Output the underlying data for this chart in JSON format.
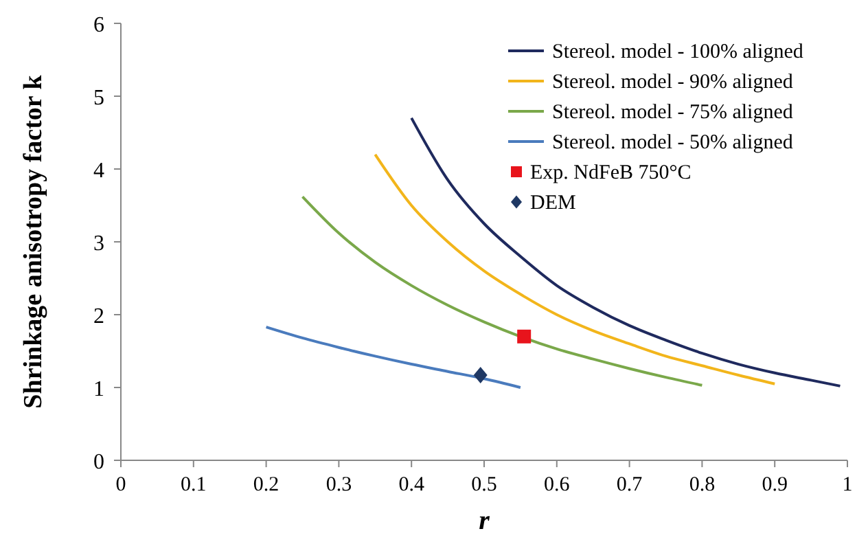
{
  "chart_data": {
    "type": "line",
    "xlabel": "r",
    "ylabel": "Shrinkage anisotropy factor k",
    "xlim": [
      0,
      1
    ],
    "ylim": [
      0,
      6
    ],
    "xticks": [
      0,
      0.1,
      0.2,
      0.3,
      0.4,
      0.5,
      0.6,
      0.7,
      0.8,
      0.9,
      1
    ],
    "yticks": [
      0,
      1,
      2,
      3,
      4,
      5,
      6
    ],
    "grid": false,
    "legend": "top right",
    "marker": "none",
    "line_style": "solid",
    "series": [
      {
        "name": "Stereol. model - 100% aligned",
        "color": "#1f2a5e",
        "x": [
          0.4,
          0.45,
          0.5,
          0.55,
          0.6,
          0.65,
          0.7,
          0.75,
          0.8,
          0.85,
          0.9,
          0.95,
          0.99
        ],
        "values": [
          4.7,
          3.85,
          3.25,
          2.8,
          2.4,
          2.1,
          1.85,
          1.65,
          1.47,
          1.32,
          1.2,
          1.1,
          1.02
        ]
      },
      {
        "name": "Stereol. model - 90% aligned",
        "color": "#f2b51b",
        "x": [
          0.35,
          0.4,
          0.45,
          0.5,
          0.55,
          0.6,
          0.65,
          0.7,
          0.75,
          0.8,
          0.85,
          0.9
        ],
        "values": [
          4.2,
          3.5,
          3.0,
          2.6,
          2.28,
          2.0,
          1.78,
          1.6,
          1.43,
          1.3,
          1.17,
          1.05
        ]
      },
      {
        "name": "Stereol. model - 75% aligned",
        "color": "#7aa84a",
        "x": [
          0.25,
          0.3,
          0.35,
          0.4,
          0.45,
          0.5,
          0.55,
          0.6,
          0.65,
          0.7,
          0.75,
          0.8
        ],
        "values": [
          3.62,
          3.12,
          2.72,
          2.4,
          2.13,
          1.9,
          1.7,
          1.53,
          1.39,
          1.26,
          1.14,
          1.03
        ]
      },
      {
        "name": "Stereol. model - 50% aligned",
        "color": "#4a7bbd",
        "x": [
          0.2,
          0.25,
          0.3,
          0.35,
          0.4,
          0.45,
          0.5,
          0.55
        ],
        "values": [
          1.83,
          1.68,
          1.55,
          1.43,
          1.32,
          1.22,
          1.12,
          1.0
        ]
      },
      {
        "name": "Exp. NdFeB 750°C",
        "type": "scatter",
        "marker": "square",
        "color": "#e8141c",
        "x": [
          0.555
        ],
        "values": [
          1.7
        ]
      },
      {
        "name": "DEM",
        "type": "scatter",
        "marker": "diamond",
        "color": "#1f3864",
        "x": [
          0.495
        ],
        "values": [
          1.17
        ]
      }
    ]
  }
}
